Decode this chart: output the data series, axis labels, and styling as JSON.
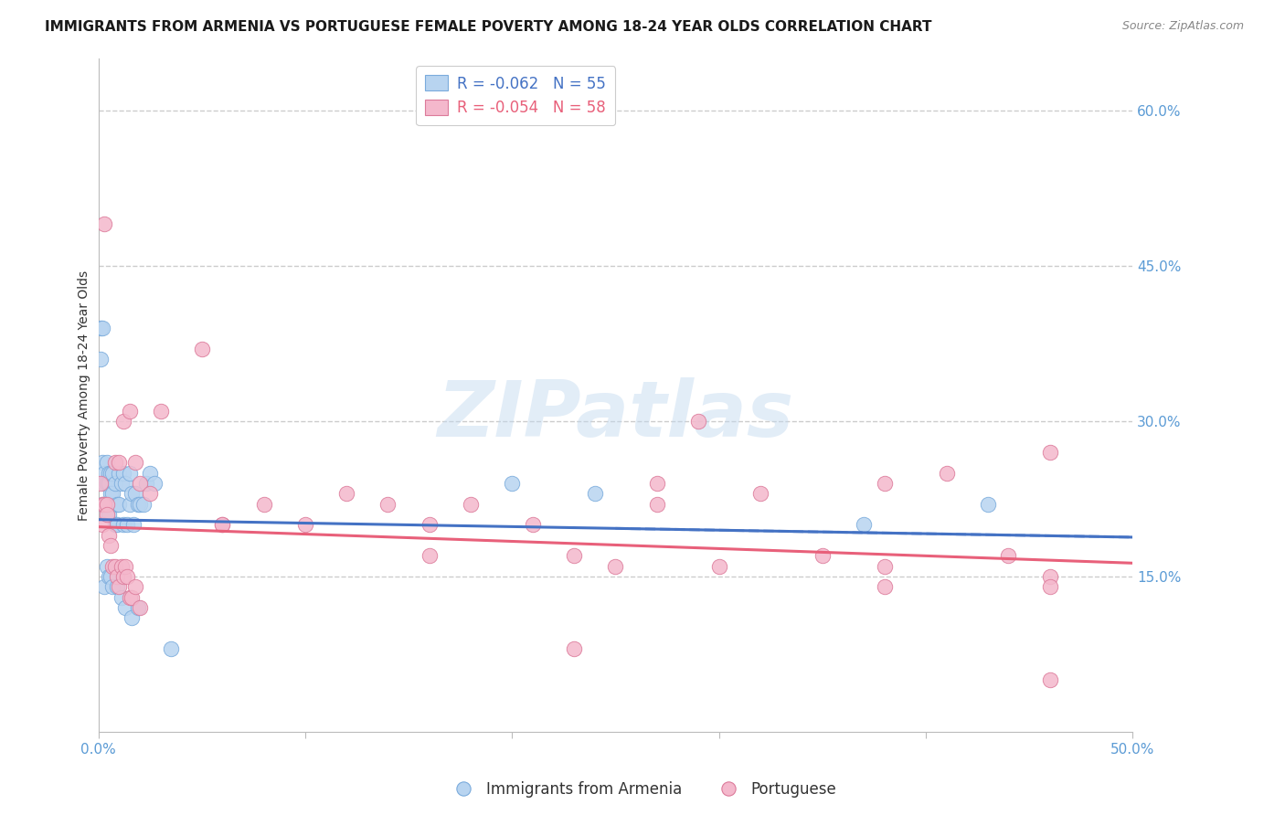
{
  "title": "IMMIGRANTS FROM ARMENIA VS PORTUGUESE FEMALE POVERTY AMONG 18-24 YEAR OLDS CORRELATION CHART",
  "source": "Source: ZipAtlas.com",
  "ylabel": "Female Poverty Among 18-24 Year Olds",
  "xlim": [
    0.0,
    0.5
  ],
  "ylim": [
    0.0,
    0.65
  ],
  "right_yticks": [
    0.0,
    0.15,
    0.3,
    0.45,
    0.6
  ],
  "right_yticklabels": [
    "",
    "15.0%",
    "30.0%",
    "45.0%",
    "60.0%"
  ],
  "xticks": [
    0.0,
    0.1,
    0.2,
    0.3,
    0.4,
    0.5
  ],
  "xticklabels": [
    "0.0%",
    "",
    "",
    "",
    "",
    "50.0%"
  ],
  "legend1_label": "R = -0.062   N = 55",
  "legend2_label": "R = -0.054   N = 58",
  "scatter1_color": "#b8d4f0",
  "scatter2_color": "#f4b8cc",
  "scatter1_edgecolor": "#7aabdc",
  "scatter2_edgecolor": "#dc7a9a",
  "line1_color": "#4472c4",
  "line2_color": "#e8607a",
  "watermark": "ZIPatlas",
  "grid_color": "#cccccc",
  "bg_color": "#ffffff",
  "title_fontsize": 11,
  "axis_label_fontsize": 10,
  "tick_fontsize": 11,
  "s1_line_start": 0.205,
  "s1_line_end": 0.188,
  "s2_line_start": 0.198,
  "s2_line_end": 0.163,
  "s1_dash_xstart": 0.25,
  "scatter1_x": [
    0.001,
    0.001,
    0.002,
    0.002,
    0.002,
    0.003,
    0.003,
    0.003,
    0.004,
    0.004,
    0.004,
    0.005,
    0.005,
    0.005,
    0.006,
    0.006,
    0.007,
    0.007,
    0.008,
    0.008,
    0.009,
    0.009,
    0.01,
    0.01,
    0.011,
    0.012,
    0.012,
    0.013,
    0.014,
    0.015,
    0.015,
    0.016,
    0.017,
    0.018,
    0.019,
    0.02,
    0.022,
    0.023,
    0.025,
    0.027,
    0.003,
    0.004,
    0.005,
    0.006,
    0.007,
    0.009,
    0.011,
    0.013,
    0.016,
    0.019,
    0.035,
    0.2,
    0.24,
    0.37,
    0.43
  ],
  "scatter1_y": [
    0.39,
    0.36,
    0.39,
    0.26,
    0.22,
    0.25,
    0.24,
    0.22,
    0.26,
    0.24,
    0.22,
    0.21,
    0.25,
    0.24,
    0.23,
    0.25,
    0.23,
    0.25,
    0.24,
    0.2,
    0.22,
    0.2,
    0.25,
    0.22,
    0.24,
    0.2,
    0.25,
    0.24,
    0.2,
    0.25,
    0.22,
    0.23,
    0.2,
    0.23,
    0.22,
    0.22,
    0.22,
    0.24,
    0.25,
    0.24,
    0.14,
    0.16,
    0.15,
    0.15,
    0.14,
    0.14,
    0.13,
    0.12,
    0.11,
    0.12,
    0.08,
    0.24,
    0.23,
    0.2,
    0.22
  ],
  "scatter2_x": [
    0.001,
    0.002,
    0.002,
    0.003,
    0.004,
    0.004,
    0.005,
    0.006,
    0.007,
    0.008,
    0.009,
    0.01,
    0.011,
    0.012,
    0.013,
    0.014,
    0.015,
    0.016,
    0.018,
    0.02,
    0.008,
    0.01,
    0.012,
    0.015,
    0.018,
    0.02,
    0.025,
    0.03,
    0.05,
    0.06,
    0.08,
    0.1,
    0.12,
    0.14,
    0.16,
    0.18,
    0.21,
    0.23,
    0.25,
    0.27,
    0.3,
    0.32,
    0.35,
    0.38,
    0.41,
    0.44,
    0.46,
    0.003,
    0.06,
    0.16,
    0.27,
    0.38,
    0.46,
    0.38,
    0.46,
    0.29,
    0.46,
    0.23
  ],
  "scatter2_y": [
    0.24,
    0.22,
    0.2,
    0.22,
    0.22,
    0.21,
    0.19,
    0.18,
    0.16,
    0.16,
    0.15,
    0.14,
    0.16,
    0.15,
    0.16,
    0.15,
    0.13,
    0.13,
    0.14,
    0.12,
    0.26,
    0.26,
    0.3,
    0.31,
    0.26,
    0.24,
    0.23,
    0.31,
    0.37,
    0.2,
    0.22,
    0.2,
    0.23,
    0.22,
    0.2,
    0.22,
    0.2,
    0.17,
    0.16,
    0.24,
    0.16,
    0.23,
    0.17,
    0.24,
    0.25,
    0.17,
    0.15,
    0.49,
    0.2,
    0.17,
    0.22,
    0.16,
    0.14,
    0.14,
    0.27,
    0.3,
    0.05,
    0.08
  ]
}
